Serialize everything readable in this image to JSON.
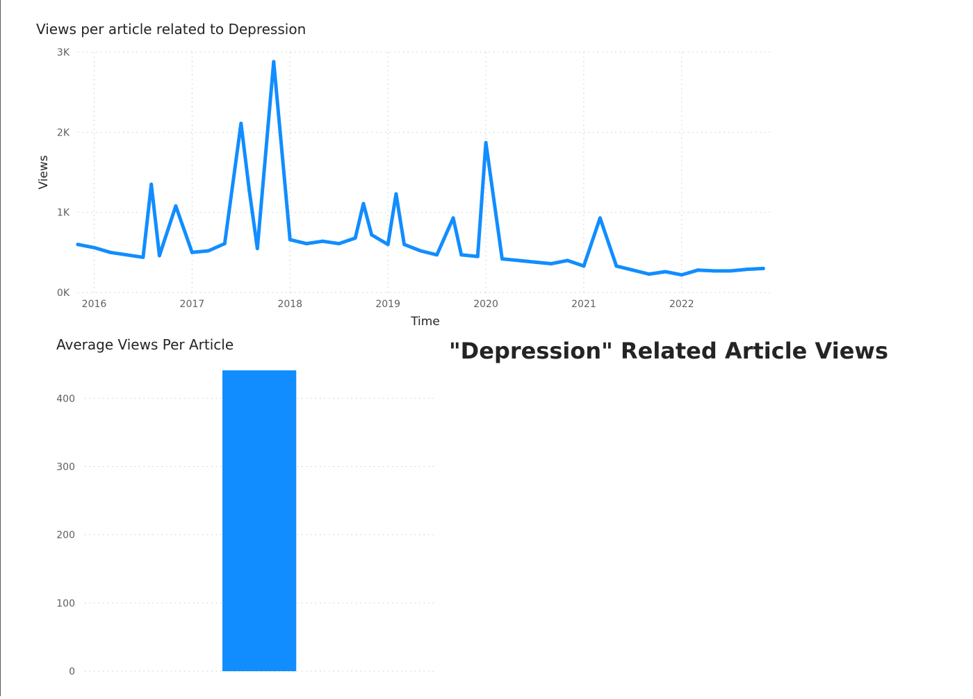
{
  "page_title": "\"Depression\" Related Article Views",
  "colors": {
    "series": "#118DFF",
    "grid": "#c8c8c8",
    "text": "#252423",
    "tick": "#605e5c"
  },
  "chart_data": [
    {
      "type": "line",
      "title": "Views per article related to Depression",
      "xlabel": "Time",
      "ylabel": "Views",
      "x_ticks": [
        "2016",
        "2017",
        "2018",
        "2019",
        "2020",
        "2021",
        "2022"
      ],
      "y_ticks": [
        "0K",
        "1K",
        "2K",
        "3K"
      ],
      "ylim": [
        0,
        3000
      ],
      "xlim": [
        "2015-11-01",
        "2022-12-01"
      ],
      "grid": true,
      "legend": "none",
      "series": [
        {
          "x": [
            "2015-11",
            "2016-01",
            "2016-03",
            "2016-05",
            "2016-07",
            "2016-08",
            "2016-09",
            "2016-11",
            "2017-01",
            "2017-03",
            "2017-05",
            "2017-07",
            "2017-08",
            "2017-09",
            "2017-11",
            "2018-01",
            "2018-03",
            "2018-05",
            "2018-07",
            "2018-09",
            "2018-10",
            "2018-11",
            "2019-01",
            "2019-02",
            "2019-03",
            "2019-05",
            "2019-07",
            "2019-09",
            "2019-10",
            "2019-12",
            "2020-01",
            "2020-03",
            "2020-05",
            "2020-07",
            "2020-09",
            "2020-11",
            "2021-01",
            "2021-03",
            "2021-05",
            "2021-07",
            "2021-09",
            "2021-11",
            "2022-01",
            "2022-03",
            "2022-05",
            "2022-07",
            "2022-09",
            "2022-11"
          ],
          "values": [
            600,
            560,
            500,
            470,
            440,
            1350,
            460,
            1080,
            500,
            520,
            610,
            2110,
            1280,
            550,
            2880,
            660,
            610,
            640,
            610,
            680,
            1110,
            720,
            600,
            1230,
            600,
            520,
            470,
            930,
            470,
            450,
            1870,
            420,
            400,
            380,
            360,
            400,
            330,
            930,
            330,
            280,
            230,
            260,
            220,
            280,
            270,
            270,
            290,
            300
          ]
        }
      ]
    },
    {
      "type": "bar",
      "title": "Average Views Per Article",
      "xlabel": "",
      "ylabel": "",
      "categories": [
        ""
      ],
      "values": [
        441
      ],
      "y_ticks": [
        "0",
        "100",
        "200",
        "300",
        "400"
      ],
      "ylim": [
        0,
        441
      ],
      "grid": true,
      "legend": "none"
    }
  ]
}
